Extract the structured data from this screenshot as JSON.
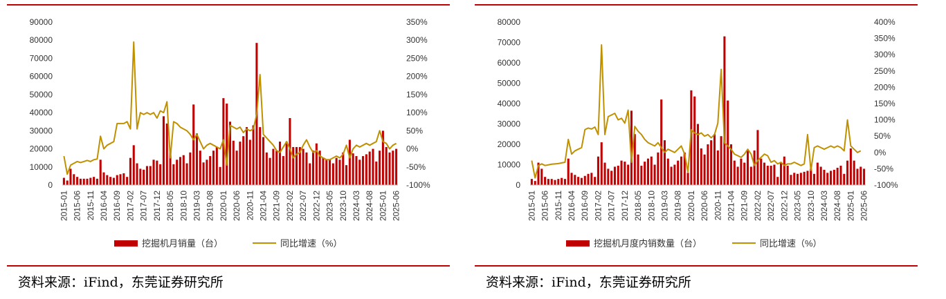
{
  "chart_data": [
    {
      "type": "bar+line",
      "x_labels": [
        "2015-01",
        "2015-06",
        "2015-11",
        "2016-04",
        "2016-09",
        "2017-02",
        "2017-07",
        "2017-12",
        "2018-05",
        "2018-10",
        "2019-03",
        "2019-08",
        "2020-01",
        "2020-06",
        "2020-11",
        "2021-04",
        "2021-09",
        "2022-02",
        "2022-07",
        "2022-12",
        "2023-05",
        "2023-10",
        "2024-03",
        "2024-08",
        "2025-01",
        "2025-06"
      ],
      "y_left": {
        "min": 0,
        "max": 90000,
        "step": 10000,
        "ticks": [
          "0",
          "10000",
          "20000",
          "30000",
          "40000",
          "50000",
          "60000",
          "70000",
          "80000",
          "90000"
        ]
      },
      "y_right": {
        "min": -100,
        "max": 350,
        "step": 50,
        "ticks": [
          "-100%",
          "-50%",
          "0%",
          "50%",
          "100%",
          "150%",
          "200%",
          "250%",
          "300%",
          "350%"
        ]
      },
      "series": [
        {
          "name": "挖掘机月销量（台）",
          "kind": "bar",
          "color": "#c00000",
          "values": [
            4000,
            2500,
            9000,
            6000,
            4500,
            3500,
            3500,
            3500,
            4000,
            4500,
            3500,
            14000,
            7000,
            5500,
            4500,
            4000,
            5500,
            6000,
            6500,
            4500,
            15000,
            22000,
            12000,
            9000,
            8500,
            10500,
            10500,
            14000,
            13500,
            11500,
            38000,
            34000,
            20000,
            11500,
            14000,
            15500,
            16500,
            12000,
            18000,
            44500,
            28500,
            19000,
            12500,
            14000,
            16000,
            19000,
            21000,
            10000,
            48000,
            45000,
            35000,
            24500,
            19000,
            24000,
            27000,
            32000,
            25000,
            33000,
            78500,
            32000,
            26500,
            18000,
            15000,
            20000,
            19000,
            24000,
            16000,
            24000,
            37000,
            21000,
            21000,
            21000,
            20000,
            18000,
            12000,
            19000,
            23000,
            19000,
            15000,
            14000,
            14000,
            12000,
            15000,
            14000,
            18000,
            11000,
            25000,
            17500,
            16000,
            14000,
            16000,
            17000,
            18500,
            20000,
            13000,
            19000,
            30000,
            21000,
            18000,
            19000,
            20000
          ]
        },
        {
          "name": "同比增速（%）",
          "kind": "line",
          "color": "#bf9000",
          "values": [
            -20,
            -70,
            -45,
            -40,
            -35,
            -38,
            -35,
            -32,
            -35,
            -30,
            -28,
            35,
            0,
            10,
            15,
            20,
            70,
            70,
            70,
            75,
            55,
            295,
            55,
            100,
            95,
            100,
            95,
            100,
            85,
            105,
            100,
            130,
            -25,
            75,
            70,
            60,
            55,
            50,
            40,
            25,
            40,
            20,
            0,
            10,
            15,
            10,
            5,
            0,
            25,
            -45,
            65,
            60,
            55,
            60,
            45,
            55,
            50,
            55,
            95,
            205,
            40,
            30,
            20,
            10,
            -5,
            -10,
            5,
            20,
            0,
            -25,
            -15,
            -10,
            10,
            25,
            5,
            -10,
            -5,
            -20,
            -25,
            -30,
            -30,
            -25,
            -20,
            -25,
            -15,
            10,
            -25,
            0,
            10,
            5,
            10,
            15,
            10,
            15,
            20,
            50,
            20,
            15,
            0,
            10,
            15
          ]
        }
      ],
      "legend_position": "bottom"
    },
    {
      "type": "bar+line",
      "x_labels": [
        "2015-01",
        "2015-06",
        "2015-11",
        "2016-04",
        "2016-09",
        "2017-02",
        "2017-07",
        "2017-12",
        "2018-05",
        "2018-10",
        "2019-03",
        "2019-08",
        "2020-01",
        "2020-06",
        "2020-11",
        "2021-04",
        "2021-09",
        "2022-02",
        "2022-07",
        "2022-12",
        "2023-05",
        "2023-10",
        "2024-03",
        "2024-08",
        "2025-01",
        "2025-06"
      ],
      "y_left": {
        "min": 0,
        "max": 80000,
        "step": 10000,
        "ticks": [
          "0",
          "10000",
          "20000",
          "30000",
          "40000",
          "50000",
          "60000",
          "70000",
          "80000"
        ]
      },
      "y_right": {
        "min": -100,
        "max": 400,
        "step": 50,
        "ticks": [
          "-100%",
          "-50%",
          "0%",
          "50%",
          "100%",
          "150%",
          "200%",
          "250%",
          "300%",
          "350%",
          "400%"
        ]
      },
      "series": [
        {
          "name": "挖掘机月度内销数量（台）",
          "kind": "bar",
          "color": "#c00000",
          "values": [
            3000,
            2000,
            11000,
            8000,
            4000,
            3000,
            3000,
            2500,
            3000,
            3500,
            3000,
            13000,
            6000,
            5000,
            4000,
            3500,
            4500,
            5500,
            6000,
            4000,
            14000,
            21000,
            11000,
            8000,
            7000,
            9000,
            9500,
            12000,
            11500,
            10000,
            36500,
            25000,
            15000,
            9500,
            11500,
            13000,
            14000,
            10000,
            16000,
            42000,
            22000,
            13000,
            9000,
            10000,
            12000,
            14000,
            16000,
            6000,
            46500,
            43500,
            30000,
            18000,
            15000,
            20000,
            22000,
            25000,
            17000,
            24000,
            73000,
            41500,
            20000,
            12000,
            9000,
            13000,
            11000,
            17000,
            9000,
            17000,
            27000,
            13000,
            11000,
            9500,
            9500,
            10000,
            4000,
            11000,
            14000,
            9500,
            5000,
            6000,
            5500,
            6000,
            6500,
            7000,
            8000,
            5500,
            11000,
            9000,
            7500,
            6000,
            7000,
            7500,
            8500,
            9500,
            5500,
            12000,
            18000,
            12000,
            8000,
            9000,
            8000
          ]
        },
        {
          "name": "同比增速（%）",
          "kind": "line",
          "color": "#bf9000",
          "values": [
            -25,
            -78,
            -40,
            -35,
            -40,
            -38,
            -36,
            -35,
            -34,
            -32,
            -30,
            40,
            -5,
            5,
            10,
            15,
            70,
            75,
            72,
            78,
            55,
            330,
            55,
            110,
            115,
            120,
            100,
            105,
            90,
            130,
            -30,
            80,
            65,
            55,
            40,
            30,
            25,
            20,
            30,
            15,
            0,
            10,
            5,
            0,
            10,
            20,
            -5,
            -60,
            70,
            60,
            55,
            60,
            50,
            55,
            45,
            55,
            90,
            255,
            30,
            20,
            10,
            -5,
            -10,
            -15,
            -5,
            10,
            -5,
            -40,
            -25,
            -15,
            -5,
            -10,
            -30,
            -25,
            -35,
            -30,
            -40,
            -35,
            -35,
            -30,
            -35,
            -40,
            -35,
            55,
            -55,
            15,
            20,
            15,
            10,
            15,
            20,
            15,
            20,
            15,
            5,
            100,
            20,
            10,
            0,
            5
          ]
        }
      ],
      "legend_position": "bottom"
    }
  ],
  "source_text": "资料来源：iFind，东莞证券研究所"
}
